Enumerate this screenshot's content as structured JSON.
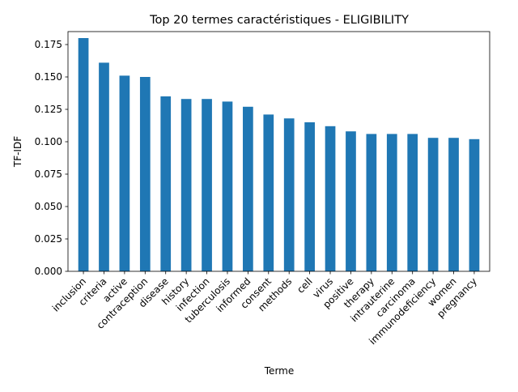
{
  "chart_data": {
    "type": "bar",
    "title": "Top 20 termes caractéristiques - ELIGIBILITY",
    "xlabel": "Terme",
    "ylabel": "TF-IDF",
    "ylim": [
      0,
      0.185
    ],
    "yticks": [
      0.0,
      0.025,
      0.05,
      0.075,
      0.1,
      0.125,
      0.15,
      0.175
    ],
    "ytick_labels": [
      "0.000",
      "0.025",
      "0.050",
      "0.075",
      "0.100",
      "0.125",
      "0.150",
      "0.175"
    ],
    "grid": false,
    "legend": "none",
    "bar_color": "#1f77b4",
    "categories": [
      "inclusion",
      "criteria",
      "active",
      "contraception",
      "disease",
      "history",
      "infection",
      "tuberculosis",
      "informed",
      "consent",
      "methods",
      "cell",
      "virus",
      "positive",
      "therapy",
      "intrauterine",
      "carcinoma",
      "immunodeficiency",
      "women",
      "pregnancy"
    ],
    "values": [
      0.18,
      0.161,
      0.151,
      0.15,
      0.135,
      0.133,
      0.133,
      0.131,
      0.127,
      0.121,
      0.118,
      0.115,
      0.112,
      0.108,
      0.106,
      0.106,
      0.106,
      0.103,
      0.103,
      0.102
    ]
  }
}
